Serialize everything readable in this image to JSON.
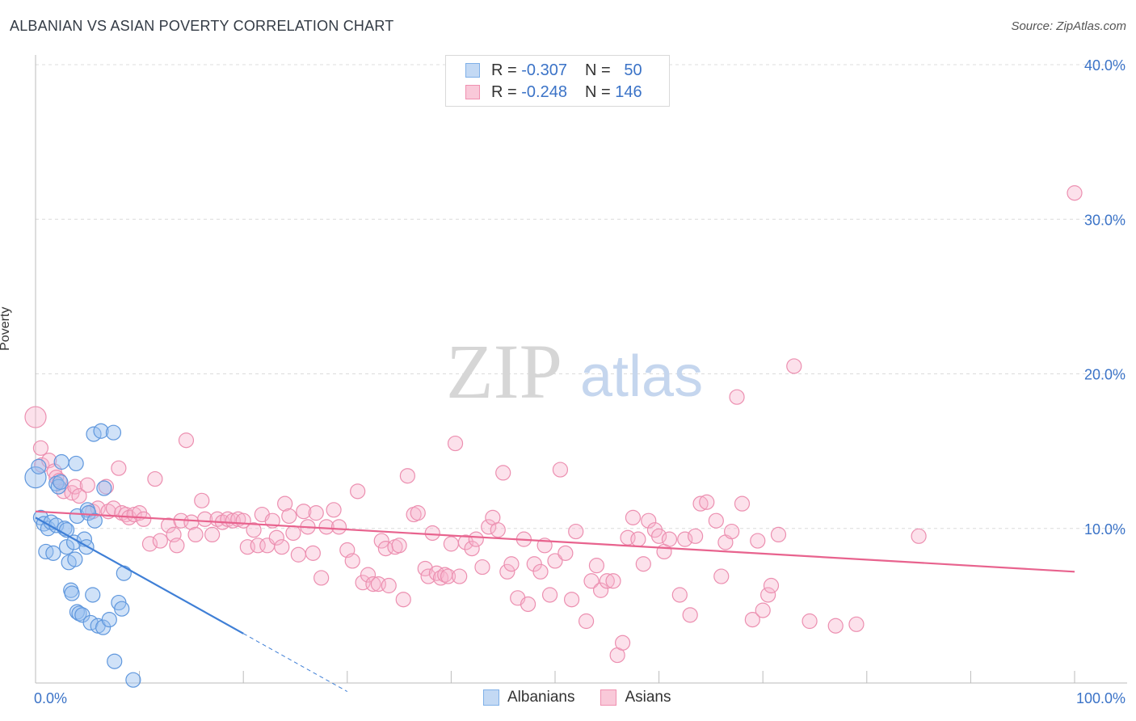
{
  "header": {
    "title": "ALBANIAN VS ASIAN POVERTY CORRELATION CHART",
    "source": "Source: ZipAtlas.com"
  },
  "watermark": {
    "zip": "ZIP",
    "atlas": "atlas"
  },
  "legend": {
    "rows": [
      {
        "r_label": "R =",
        "r_value": "-0.307",
        "n_label": "N =",
        "n_value": "50",
        "color": "#7fb0e8",
        "fill": "#c3d9f4"
      },
      {
        "r_label": "R =",
        "r_value": "-0.248",
        "n_label": "N =",
        "n_value": "146",
        "color": "#f090b0",
        "fill": "#f9c9d9"
      }
    ]
  },
  "bottom_legend": [
    {
      "label": "Albanians",
      "color": "#7fb0e8",
      "fill": "#c3d9f4"
    },
    {
      "label": "Asians",
      "color": "#f090b0",
      "fill": "#f9c9d9"
    }
  ],
  "chart_data": {
    "type": "scatter",
    "title": "ALBANIAN VS ASIAN POVERTY CORRELATION CHART",
    "xlabel": "",
    "ylabel": "Poverty",
    "xlim": [
      0,
      100
    ],
    "ylim": [
      0,
      40
    ],
    "x_tick_labels": [
      "0.0%",
      "100.0%"
    ],
    "y_ticks": [
      10,
      20,
      30,
      40
    ],
    "y_tick_labels": [
      "10.0%",
      "20.0%",
      "30.0%",
      "40.0%"
    ],
    "grid": true,
    "series": [
      {
        "name": "Albanians",
        "color": "#3f7fd6",
        "trend": {
          "x0": 0,
          "y0": 10.7,
          "x1": 20,
          "y1": 3.2,
          "dash_to_x": 30
        },
        "points": [
          [
            0,
            13.3
          ],
          [
            0.3,
            14
          ],
          [
            0.5,
            10.7
          ],
          [
            0.8,
            10.3
          ],
          [
            1,
            8.5
          ],
          [
            1.2,
            10
          ],
          [
            1.5,
            10.4
          ],
          [
            1.7,
            8.4
          ],
          [
            2,
            10.2
          ],
          [
            2,
            12.9
          ],
          [
            2.2,
            12.7
          ],
          [
            2.4,
            13
          ],
          [
            2.5,
            14.3
          ],
          [
            2.8,
            10
          ],
          [
            3,
            9.9
          ],
          [
            3,
            8.8
          ],
          [
            3.2,
            7.8
          ],
          [
            3.4,
            6
          ],
          [
            3.5,
            5.8
          ],
          [
            3.7,
            9.1
          ],
          [
            3.8,
            8
          ],
          [
            3.9,
            14.2
          ],
          [
            4,
            10.8
          ],
          [
            4,
            4.6
          ],
          [
            4.2,
            4.5
          ],
          [
            4.5,
            4.4
          ],
          [
            4.7,
            9.3
          ],
          [
            4.9,
            8.8
          ],
          [
            5,
            11.2
          ],
          [
            5.1,
            11
          ],
          [
            5.3,
            3.9
          ],
          [
            5.5,
            5.7
          ],
          [
            5.6,
            16.1
          ],
          [
            5.7,
            10.5
          ],
          [
            6,
            3.7
          ],
          [
            6.3,
            16.3
          ],
          [
            6.5,
            3.6
          ],
          [
            6.6,
            12.6
          ],
          [
            7.1,
            4.1
          ],
          [
            7.5,
            16.2
          ],
          [
            7.6,
            1.4
          ],
          [
            8,
            5.2
          ],
          [
            8.3,
            4.8
          ],
          [
            8.5,
            7.1
          ],
          [
            9.4,
            0.2
          ]
        ]
      },
      {
        "name": "Asians",
        "color": "#e8638e",
        "trend": {
          "x0": 0,
          "y0": 11.1,
          "x1": 100,
          "y1": 7.2
        },
        "points": [
          [
            0,
            17.2
          ],
          [
            0.5,
            15.2
          ],
          [
            0.6,
            14.1
          ],
          [
            1.3,
            14.4
          ],
          [
            1.8,
            13.7
          ],
          [
            2,
            13.3
          ],
          [
            2.3,
            13.1
          ],
          [
            2.7,
            12.4
          ],
          [
            3.5,
            12.3
          ],
          [
            3.8,
            12.7
          ],
          [
            4.2,
            12.1
          ],
          [
            5,
            12.8
          ],
          [
            5.5,
            11.1
          ],
          [
            6,
            11.3
          ],
          [
            6.8,
            12.7
          ],
          [
            7,
            11.1
          ],
          [
            7.5,
            11.3
          ],
          [
            8,
            13.9
          ],
          [
            8.3,
            11
          ],
          [
            8.7,
            10.9
          ],
          [
            9,
            10.7
          ],
          [
            9.5,
            10.9
          ],
          [
            10,
            11
          ],
          [
            10.4,
            10.6
          ],
          [
            11,
            9
          ],
          [
            11.5,
            13.2
          ],
          [
            12,
            9.2
          ],
          [
            12.8,
            10.2
          ],
          [
            13.3,
            9.6
          ],
          [
            13.6,
            8.9
          ],
          [
            14,
            10.5
          ],
          [
            14.5,
            15.7
          ],
          [
            15,
            10.4
          ],
          [
            15.4,
            9.6
          ],
          [
            16,
            11.8
          ],
          [
            16.3,
            10.6
          ],
          [
            17,
            9.6
          ],
          [
            17.5,
            10.6
          ],
          [
            18,
            10.4
          ],
          [
            18.5,
            10.6
          ],
          [
            19,
            10.5
          ],
          [
            19.5,
            10.6
          ],
          [
            20,
            10.5
          ],
          [
            20.4,
            8.8
          ],
          [
            21,
            9.9
          ],
          [
            21.4,
            8.9
          ],
          [
            21.8,
            10.9
          ],
          [
            22.3,
            8.9
          ],
          [
            22.8,
            10.5
          ],
          [
            23.2,
            9.4
          ],
          [
            23.7,
            8.8
          ],
          [
            24,
            11.6
          ],
          [
            24.4,
            10.8
          ],
          [
            24.8,
            9.7
          ],
          [
            25.3,
            8.3
          ],
          [
            25.8,
            11.1
          ],
          [
            26.2,
            10.1
          ],
          [
            26.7,
            8.4
          ],
          [
            27,
            11
          ],
          [
            27.5,
            6.8
          ],
          [
            28,
            10.1
          ],
          [
            28.7,
            11.2
          ],
          [
            29.2,
            10.1
          ],
          [
            30,
            8.6
          ],
          [
            30.5,
            7.9
          ],
          [
            31,
            12.4
          ],
          [
            31.5,
            6.5
          ],
          [
            32,
            7
          ],
          [
            32.5,
            6.4
          ],
          [
            33,
            6.4
          ],
          [
            33.3,
            9.2
          ],
          [
            33.7,
            8.7
          ],
          [
            34,
            6.3
          ],
          [
            34.6,
            8.8
          ],
          [
            35,
            8.9
          ],
          [
            35.4,
            5.4
          ],
          [
            35.8,
            13.4
          ],
          [
            36.4,
            10.9
          ],
          [
            36.8,
            11
          ],
          [
            37.5,
            7.4
          ],
          [
            37.8,
            6.9
          ],
          [
            38.2,
            9.7
          ],
          [
            38.6,
            7.1
          ],
          [
            39,
            6.8
          ],
          [
            39.4,
            7
          ],
          [
            39.7,
            6.9
          ],
          [
            40,
            9
          ],
          [
            40.4,
            15.5
          ],
          [
            40.8,
            6.9
          ],
          [
            41.4,
            9.1
          ],
          [
            42,
            8.7
          ],
          [
            42.4,
            9.3
          ],
          [
            43,
            7.5
          ],
          [
            43.6,
            10.1
          ],
          [
            44,
            10.7
          ],
          [
            44.5,
            9.9
          ],
          [
            45,
            13.6
          ],
          [
            45.4,
            7.2
          ],
          [
            45.8,
            7.7
          ],
          [
            46.4,
            5.5
          ],
          [
            47,
            9.3
          ],
          [
            47.4,
            5.1
          ],
          [
            48,
            7.7
          ],
          [
            48.6,
            7.2
          ],
          [
            49,
            8.9
          ],
          [
            49.5,
            5.7
          ],
          [
            50,
            7.9
          ],
          [
            50.5,
            13.8
          ],
          [
            51,
            8.4
          ],
          [
            51.6,
            5.4
          ],
          [
            52,
            9.8
          ],
          [
            53,
            4
          ],
          [
            53.5,
            6.6
          ],
          [
            54,
            7.6
          ],
          [
            54.4,
            6
          ],
          [
            55,
            6.6
          ],
          [
            55.6,
            6.6
          ],
          [
            56,
            1.8
          ],
          [
            56.5,
            2.6
          ],
          [
            57,
            9.4
          ],
          [
            57.5,
            10.7
          ],
          [
            58,
            9.3
          ],
          [
            58.5,
            7.7
          ],
          [
            59,
            10.5
          ],
          [
            59.6,
            9.9
          ],
          [
            60,
            9.5
          ],
          [
            60.5,
            8.5
          ],
          [
            61,
            9.3
          ],
          [
            62,
            5.7
          ],
          [
            62.5,
            9.3
          ],
          [
            63,
            4.4
          ],
          [
            63.5,
            9.5
          ],
          [
            64,
            11.6
          ],
          [
            64.6,
            11.7
          ],
          [
            65.5,
            10.5
          ],
          [
            66,
            6.9
          ],
          [
            66.4,
            9.1
          ],
          [
            67,
            9.8
          ],
          [
            67.5,
            18.5
          ],
          [
            68,
            11.6
          ],
          [
            69,
            4.1
          ],
          [
            69.5,
            9.2
          ],
          [
            70,
            4.7
          ],
          [
            70.5,
            5.7
          ],
          [
            70.8,
            6.3
          ],
          [
            71.5,
            9.6
          ],
          [
            73,
            20.5
          ],
          [
            74.5,
            4
          ],
          [
            77,
            3.7
          ],
          [
            79,
            3.8
          ],
          [
            85,
            9.5
          ],
          [
            100,
            31.7
          ]
        ]
      }
    ]
  }
}
